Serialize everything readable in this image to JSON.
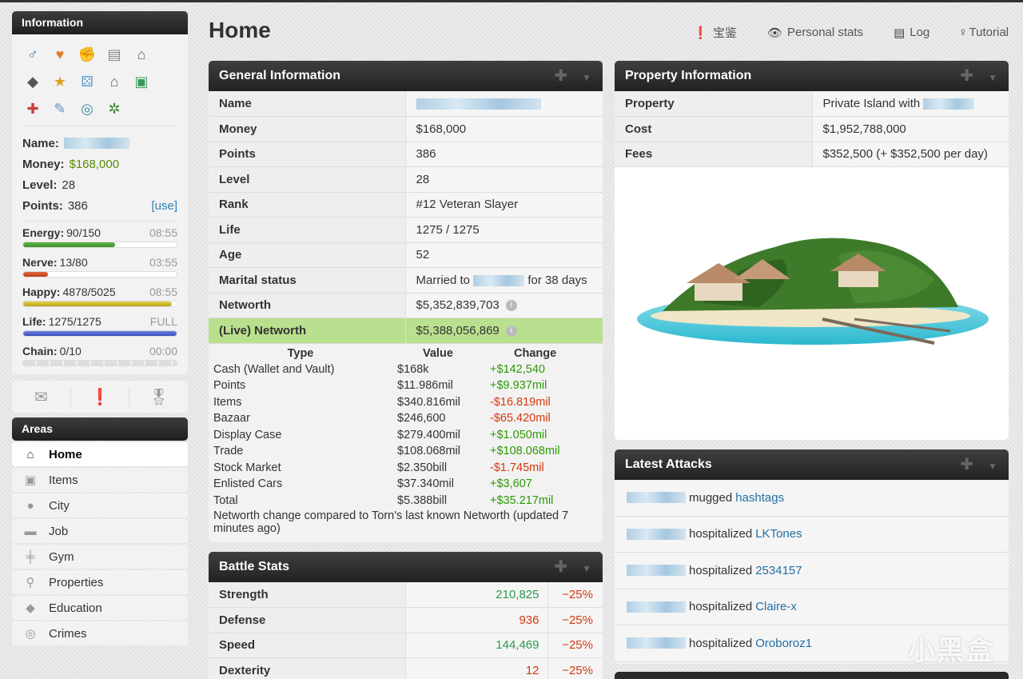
{
  "sidebar": {
    "info_title": "Information",
    "icons": [
      "male-icon",
      "heart-icon",
      "fist-icon",
      "clipboard-icon",
      "bank-icon",
      "graduation-cap-icon",
      "star-icon",
      "dice-icon",
      "bank-vault-icon",
      "stock-icon",
      "hospital-icon",
      "syringe-icon",
      "cycle-icon",
      "leaf-icon"
    ],
    "name_label": "Name:",
    "money_label": "Money:",
    "money": "$168,000",
    "level_label": "Level:",
    "level": "28",
    "points_label": "Points:",
    "points": "386",
    "use": "[use]",
    "energy": {
      "label": "Energy:",
      "value": "90/150",
      "timer": "08:55",
      "pct": 0.6
    },
    "nerve": {
      "label": "Nerve:",
      "value": "13/80",
      "timer": "03:55",
      "pct": 0.1625
    },
    "happy": {
      "label": "Happy:",
      "value": "4878/5025",
      "timer": "08:55",
      "pct": 0.97
    },
    "life": {
      "label": "Life:",
      "value": "1275/1275",
      "timer": "FULL",
      "pct": 1.0
    },
    "chain": {
      "label": "Chain:",
      "value": "0/10",
      "timer": "00:00",
      "pct": 0
    },
    "quick": [
      "mail-icon",
      "alert-icon",
      "medal-icon"
    ],
    "areas_title": "Areas",
    "areas": [
      {
        "label": "Home",
        "icon": "home-icon"
      },
      {
        "label": "Items",
        "icon": "box-icon"
      },
      {
        "label": "City",
        "icon": "map-pin-icon"
      },
      {
        "label": "Job",
        "icon": "briefcase-icon"
      },
      {
        "label": "Gym",
        "icon": "dumbbell-icon"
      },
      {
        "label": "Properties",
        "icon": "key-icon"
      },
      {
        "label": "Education",
        "icon": "graduation-cap-icon"
      },
      {
        "label": "Crimes",
        "icon": "fingerprint-icon"
      }
    ]
  },
  "header": {
    "title": "Home",
    "links": [
      {
        "label": "宝鉴",
        "icon": "alert-icon"
      },
      {
        "label": "Personal stats",
        "icon": "eye-icon"
      },
      {
        "label": "Log",
        "icon": "clipboard-icon"
      },
      {
        "label": "Tutorial",
        "icon": "lightbulb-icon"
      }
    ]
  },
  "general": {
    "title": "General Information",
    "rows": [
      {
        "k": "Name",
        "v": ""
      },
      {
        "k": "Money",
        "v": "$168,000"
      },
      {
        "k": "Points",
        "v": "386"
      },
      {
        "k": "Level",
        "v": "28"
      },
      {
        "k": "Rank",
        "v": "#12 Veteran Slayer"
      },
      {
        "k": "Life",
        "v": "1275 / 1275"
      },
      {
        "k": "Age",
        "v": "52"
      }
    ],
    "marital_label": "Marital status",
    "marital_pre": "Married to",
    "marital_post": "for 38 days",
    "networth_label": "Networth",
    "networth": "$5,352,839,703",
    "live_label": "(Live) Networth",
    "live": "$5,388,056,869",
    "nw_headers": [
      "Type",
      "Value",
      "Change"
    ],
    "nw_rows": [
      {
        "type": "Cash (Wallet and Vault)",
        "value": "$168k",
        "change": "+$142,540",
        "sign": "pos"
      },
      {
        "type": "Points",
        "value": "$11.986mil",
        "change": "+$9.937mil",
        "sign": "pos"
      },
      {
        "type": "Items",
        "value": "$340.816mil",
        "change": "-$16.819mil",
        "sign": "neg"
      },
      {
        "type": "Bazaar",
        "value": "$246,600",
        "change": "-$65.420mil",
        "sign": "neg"
      },
      {
        "type": "Display Case",
        "value": "$279.400mil",
        "change": "+$1.050mil",
        "sign": "pos"
      },
      {
        "type": "Trade",
        "value": "$108.068mil",
        "change": "+$108.068mil",
        "sign": "pos"
      },
      {
        "type": "Stock Market",
        "value": "$2.350bill",
        "change": "-$1.745mil",
        "sign": "neg"
      },
      {
        "type": "Enlisted Cars",
        "value": "$37.340mil",
        "change": "+$3,607",
        "sign": "pos"
      },
      {
        "type": "Total",
        "value": "$5.388bill",
        "change": "+$35.217mil",
        "sign": "pos"
      }
    ],
    "nw_note": "Networth change compared to Torn's last known Networth (updated 7 minutes ago)"
  },
  "battle": {
    "title": "Battle Stats",
    "rows": [
      {
        "k": "Strength",
        "v": "210,825",
        "m": "−25%",
        "color": "#2a9a50"
      },
      {
        "k": "Defense",
        "v": "936",
        "m": "−25%",
        "color": "#d4380d"
      },
      {
        "k": "Speed",
        "v": "144,469",
        "m": "−25%",
        "color": "#2a9a50"
      },
      {
        "k": "Dexterity",
        "v": "12",
        "m": "−25%",
        "color": "#d4380d"
      }
    ]
  },
  "property": {
    "title": "Property Information",
    "rows": [
      {
        "k": "Property",
        "v": "Private Island with"
      },
      {
        "k": "Cost",
        "v": "$1,952,788,000"
      },
      {
        "k": "Fees",
        "v": "$352,500 (+ $352,500 per day)"
      }
    ]
  },
  "attacks": {
    "title": "Latest Attacks",
    "rows": [
      {
        "action": "mugged",
        "target": "hashtags"
      },
      {
        "action": "hospitalized",
        "target": "LKTones"
      },
      {
        "action": "hospitalized",
        "target": "2534157"
      },
      {
        "action": "hospitalized",
        "target": "Claire-x"
      },
      {
        "action": "hospitalized",
        "target": "Oroboroz1"
      }
    ]
  },
  "watermark": "小黑盒"
}
